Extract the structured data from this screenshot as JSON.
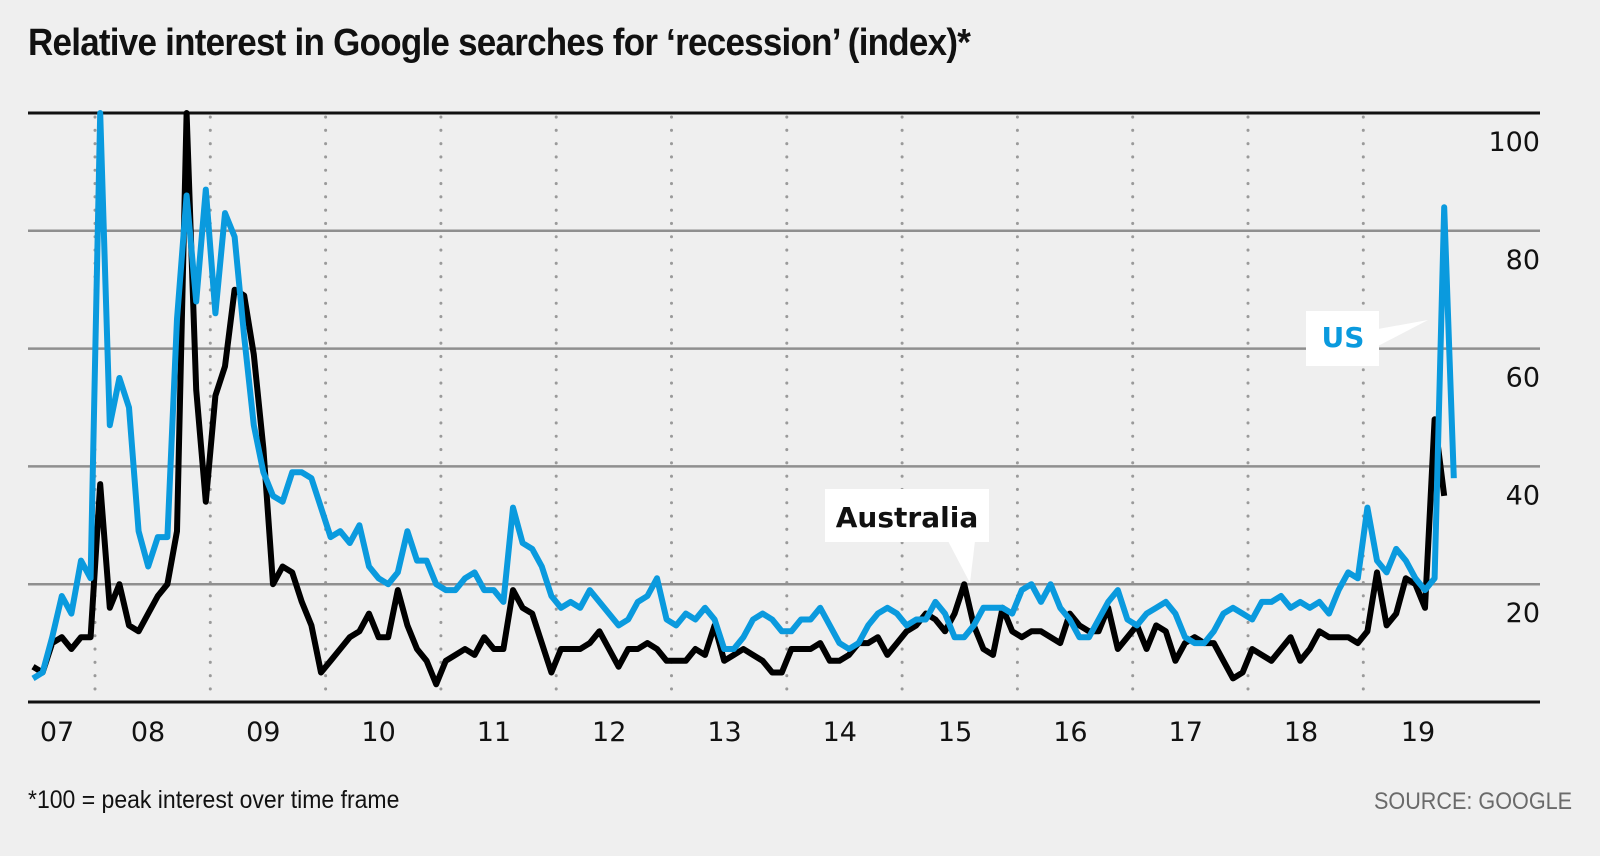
{
  "header": {
    "title": "Relative interest in Google searches for ‘recession’ (index)*"
  },
  "footer": {
    "footnote": "*100 = peak interest over time frame",
    "source": "SOURCE: GOOGLE"
  },
  "chart_data": {
    "type": "line",
    "title": "Relative interest in Google searches for ‘recession’ (index)*",
    "xlabel": "",
    "ylabel": "",
    "x_start": "2007-06",
    "x_interval": "month",
    "x_tick_labels": [
      "07",
      "08",
      "09",
      "10",
      "11",
      "12",
      "13",
      "14",
      "15",
      "16",
      "17",
      "18",
      "19"
    ],
    "y_tick_labels": [
      "100",
      "80",
      "60",
      "40",
      "20"
    ],
    "y_ticks": [
      100,
      80,
      60,
      40,
      20
    ],
    "ylim": [
      0,
      100
    ],
    "grid": "horizontal solid at y ticks, dotted vertical at year boundaries",
    "y_axis_side": "right",
    "colors": {
      "US": "#0a9ade",
      "Australia": "#000000",
      "grid": "#999999",
      "background": "#efefef"
    },
    "annotations": [
      {
        "series": "Australia",
        "label": "Australia"
      },
      {
        "series": "US",
        "label": "US"
      }
    ],
    "series": [
      {
        "name": "US",
        "values": [
          4,
          5,
          11,
          18,
          15,
          24,
          21,
          100,
          47,
          55,
          50,
          29,
          23,
          28,
          28,
          65,
          86,
          68,
          87,
          66,
          83,
          79,
          62,
          47,
          39,
          35,
          34,
          39,
          39,
          38,
          33,
          28,
          29,
          27,
          30,
          23,
          21,
          20,
          22,
          29,
          24,
          24,
          20,
          19,
          19,
          21,
          22,
          19,
          19,
          17,
          33,
          27,
          26,
          23,
          18,
          16,
          17,
          16,
          19,
          17,
          15,
          13,
          14,
          17,
          18,
          21,
          14,
          13,
          15,
          14,
          16,
          14,
          9,
          9,
          11,
          14,
          15,
          14,
          12,
          12,
          14,
          14,
          16,
          13,
          10,
          9,
          10,
          13,
          15,
          16,
          15,
          13,
          14,
          14,
          17,
          15,
          11,
          11,
          13,
          16,
          16,
          16,
          15,
          19,
          20,
          17,
          20,
          16,
          14,
          11,
          11,
          14,
          17,
          19,
          14,
          13,
          15,
          16,
          17,
          15,
          11,
          10,
          10,
          12,
          15,
          16,
          15,
          14,
          17,
          17,
          18,
          16,
          17,
          16,
          17,
          15,
          19,
          22,
          21,
          33,
          24,
          22,
          26,
          24,
          21,
          19,
          21,
          84,
          38
        ]
      },
      {
        "name": "Australia",
        "values": [
          6,
          5,
          10,
          11,
          9,
          11,
          11,
          37,
          16,
          20,
          13,
          12,
          15,
          18,
          20,
          29,
          100,
          53,
          34,
          52,
          57,
          70,
          69,
          59,
          43,
          20,
          23,
          22,
          17,
          13,
          5,
          7,
          9,
          11,
          12,
          15,
          11,
          11,
          19,
          13,
          9,
          7,
          3,
          7,
          8,
          9,
          8,
          11,
          9,
          9,
          19,
          16,
          15,
          10,
          5,
          9,
          9,
          9,
          10,
          12,
          9,
          6,
          9,
          9,
          10,
          9,
          7,
          7,
          7,
          9,
          8,
          13,
          7,
          8,
          9,
          8,
          7,
          5,
          5,
          9,
          9,
          9,
          10,
          7,
          7,
          8,
          10,
          10,
          11,
          8,
          10,
          12,
          13,
          15,
          14,
          12,
          15,
          20,
          13,
          9,
          8,
          16,
          12,
          11,
          12,
          12,
          11,
          10,
          15,
          13,
          12,
          12,
          16,
          9,
          11,
          13,
          9,
          13,
          12,
          7,
          10,
          11,
          10,
          10,
          7,
          4,
          5,
          9,
          8,
          7,
          9,
          11,
          7,
          9,
          12,
          11,
          11,
          11,
          10,
          12,
          22,
          13,
          15,
          21,
          20,
          16,
          48,
          35
        ]
      }
    ]
  }
}
